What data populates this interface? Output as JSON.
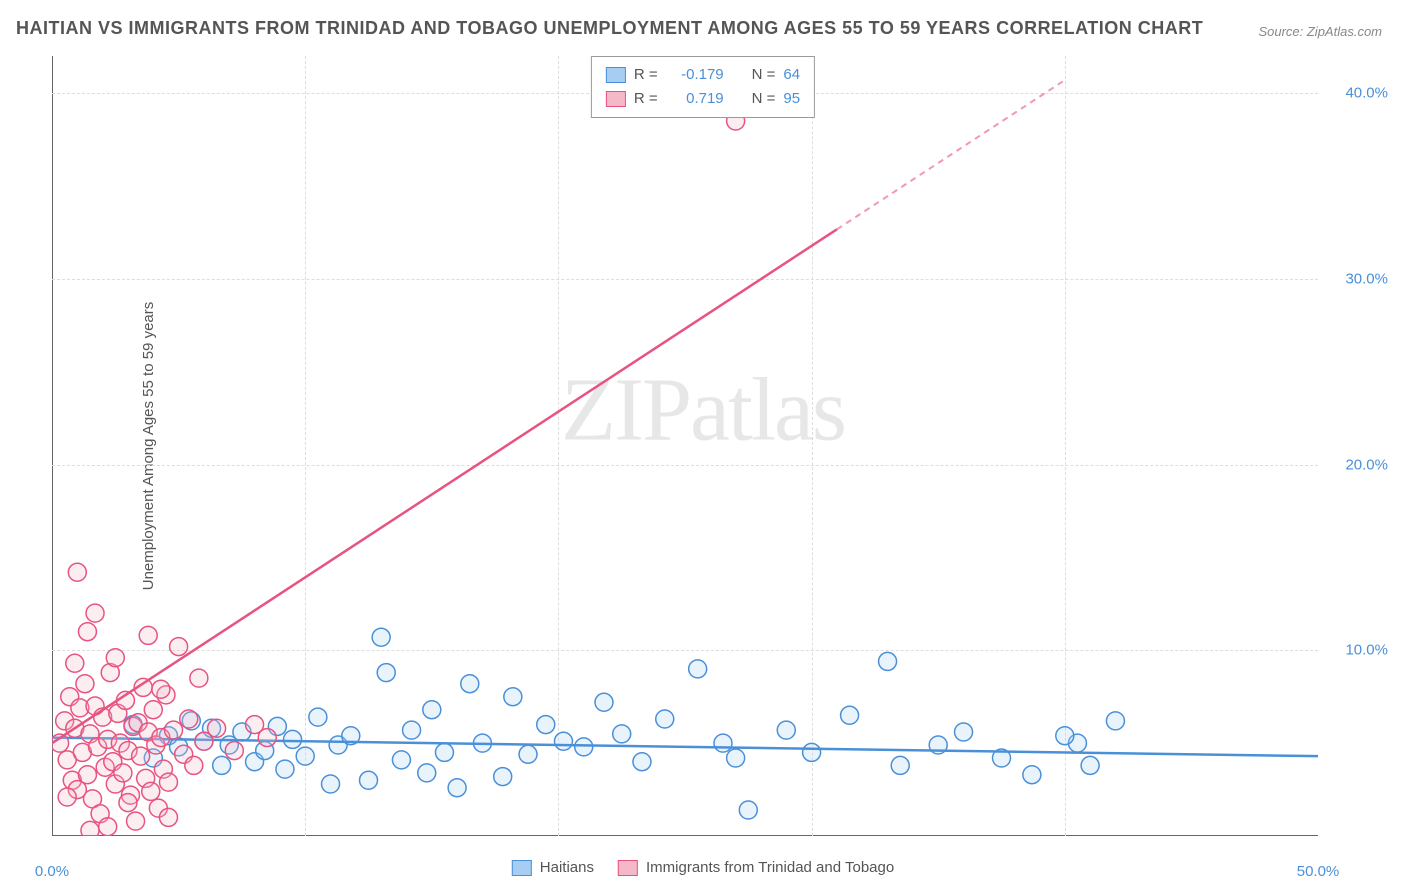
{
  "title": "HAITIAN VS IMMIGRANTS FROM TRINIDAD AND TOBAGO UNEMPLOYMENT AMONG AGES 55 TO 59 YEARS CORRELATION CHART",
  "source": "Source: ZipAtlas.com",
  "ylabel": "Unemployment Among Ages 55 to 59 years",
  "watermark": "ZIPatlas",
  "chart": {
    "type": "scatter",
    "background_color": "#ffffff",
    "grid_color": "#dddddd",
    "axis_color": "#666666",
    "tick_label_color": "#4a90d9",
    "xlim": [
      0,
      50
    ],
    "ylim": [
      0,
      42
    ],
    "xticks": [
      0,
      50
    ],
    "xtick_labels": [
      "0.0%",
      "50.0%"
    ],
    "yticks": [
      10,
      20,
      30,
      40
    ],
    "ytick_labels": [
      "10.0%",
      "20.0%",
      "30.0%",
      "40.0%"
    ],
    "gridlines_y": [
      10,
      20,
      30,
      40
    ],
    "gridlines_x": [
      10,
      20,
      30,
      40
    ],
    "marker_radius": 9,
    "series": [
      {
        "name": "Haitians",
        "color_fill": "#a7cef2",
        "color_stroke": "#4a90d9",
        "R": "-0.179",
        "N": "64",
        "trend": {
          "x1": 0,
          "y1": 5.3,
          "x2": 50,
          "y2": 4.3,
          "dashed_from": null
        },
        "points": [
          [
            3.2,
            6.0
          ],
          [
            4.0,
            4.2
          ],
          [
            4.6,
            5.4
          ],
          [
            5.0,
            4.8
          ],
          [
            5.5,
            6.2
          ],
          [
            6.0,
            5.1
          ],
          [
            6.3,
            5.8
          ],
          [
            6.7,
            3.8
          ],
          [
            7.0,
            4.9
          ],
          [
            7.5,
            5.6
          ],
          [
            8.0,
            4.0
          ],
          [
            8.4,
            4.6
          ],
          [
            8.9,
            5.9
          ],
          [
            9.2,
            3.6
          ],
          [
            9.5,
            5.2
          ],
          [
            10.0,
            4.3
          ],
          [
            10.5,
            6.4
          ],
          [
            11.0,
            2.8
          ],
          [
            11.3,
            4.9
          ],
          [
            11.8,
            5.4
          ],
          [
            12.5,
            3.0
          ],
          [
            13.0,
            10.7
          ],
          [
            13.2,
            8.8
          ],
          [
            13.8,
            4.1
          ],
          [
            14.2,
            5.7
          ],
          [
            14.8,
            3.4
          ],
          [
            15.0,
            6.8
          ],
          [
            15.5,
            4.5
          ],
          [
            16.0,
            2.6
          ],
          [
            16.5,
            8.2
          ],
          [
            17.0,
            5.0
          ],
          [
            17.8,
            3.2
          ],
          [
            18.2,
            7.5
          ],
          [
            18.8,
            4.4
          ],
          [
            19.5,
            6.0
          ],
          [
            20.2,
            5.1
          ],
          [
            21.0,
            4.8
          ],
          [
            21.8,
            7.2
          ],
          [
            22.5,
            5.5
          ],
          [
            23.3,
            4.0
          ],
          [
            24.2,
            6.3
          ],
          [
            25.5,
            9.0
          ],
          [
            26.5,
            5.0
          ],
          [
            27.0,
            4.2
          ],
          [
            27.5,
            1.4
          ],
          [
            29.0,
            5.7
          ],
          [
            30.0,
            4.5
          ],
          [
            31.5,
            6.5
          ],
          [
            33.0,
            9.4
          ],
          [
            33.5,
            3.8
          ],
          [
            35.0,
            4.9
          ],
          [
            36.0,
            5.6
          ],
          [
            37.5,
            4.2
          ],
          [
            38.7,
            3.3
          ],
          [
            40.5,
            5.0
          ],
          [
            40.0,
            5.4
          ],
          [
            41.0,
            3.8
          ],
          [
            42.0,
            6.2
          ]
        ]
      },
      {
        "name": "Immigrants from Trinidad and Tobago",
        "color_fill": "#f5b8c9",
        "color_stroke": "#e75480",
        "R": "0.719",
        "N": "95",
        "trend": {
          "x1": 0,
          "y1": 5.0,
          "x2": 40,
          "y2": 40.7,
          "dashed_from": 31
        },
        "points": [
          [
            0.3,
            5.0
          ],
          [
            0.5,
            6.2
          ],
          [
            0.6,
            4.1
          ],
          [
            0.7,
            7.5
          ],
          [
            0.8,
            3.0
          ],
          [
            0.9,
            5.8
          ],
          [
            1.0,
            2.5
          ],
          [
            1.1,
            6.9
          ],
          [
            1.2,
            4.5
          ],
          [
            1.3,
            8.2
          ],
          [
            1.4,
            3.3
          ],
          [
            1.5,
            5.5
          ],
          [
            1.6,
            2.0
          ],
          [
            1.7,
            7.0
          ],
          [
            1.8,
            4.8
          ],
          [
            1.9,
            1.2
          ],
          [
            2.0,
            6.4
          ],
          [
            2.1,
            3.7
          ],
          [
            2.2,
            5.2
          ],
          [
            2.3,
            8.8
          ],
          [
            2.4,
            4.0
          ],
          [
            2.5,
            2.8
          ],
          [
            2.6,
            6.6
          ],
          [
            2.7,
            5.0
          ],
          [
            2.8,
            3.4
          ],
          [
            2.9,
            7.3
          ],
          [
            3.0,
            4.6
          ],
          [
            3.1,
            2.2
          ],
          [
            3.2,
            5.9
          ],
          [
            3.3,
            0.8
          ],
          [
            3.4,
            6.1
          ],
          [
            3.5,
            4.3
          ],
          [
            3.6,
            8.0
          ],
          [
            3.7,
            3.1
          ],
          [
            3.8,
            5.6
          ],
          [
            3.9,
            2.4
          ],
          [
            4.0,
            6.8
          ],
          [
            4.1,
            4.9
          ],
          [
            4.2,
            1.5
          ],
          [
            4.3,
            5.3
          ],
          [
            4.4,
            3.6
          ],
          [
            4.5,
            7.6
          ],
          [
            4.6,
            2.9
          ],
          [
            4.8,
            5.7
          ],
          [
            5.0,
            10.2
          ],
          [
            5.2,
            4.4
          ],
          [
            5.4,
            6.3
          ],
          [
            5.6,
            3.8
          ],
          [
            5.8,
            8.5
          ],
          [
            6.0,
            5.1
          ],
          [
            1.4,
            11.0
          ],
          [
            1.0,
            14.2
          ],
          [
            2.5,
            9.6
          ],
          [
            3.8,
            10.8
          ],
          [
            4.3,
            7.9
          ],
          [
            0.9,
            9.3
          ],
          [
            1.7,
            12.0
          ],
          [
            6.5,
            5.8
          ],
          [
            7.2,
            4.6
          ],
          [
            8.0,
            6.0
          ],
          [
            8.5,
            5.3
          ],
          [
            4.6,
            1.0
          ],
          [
            27.0,
            38.5
          ],
          [
            2.2,
            0.5
          ],
          [
            3.0,
            1.8
          ],
          [
            1.5,
            0.3
          ],
          [
            0.6,
            2.1
          ]
        ]
      }
    ]
  },
  "legend_top": [
    {
      "swatch_fill": "#a7cef2",
      "swatch_stroke": "#4a90d9",
      "r_label": "R =",
      "r_val": "-0.179",
      "n_label": "N =",
      "n_val": "64"
    },
    {
      "swatch_fill": "#f5b8c9",
      "swatch_stroke": "#e75480",
      "r_label": "R =",
      "r_val": "0.719",
      "n_label": "N =",
      "n_val": "95"
    }
  ],
  "legend_bottom": [
    {
      "swatch_fill": "#a7cef2",
      "swatch_stroke": "#4a90d9",
      "label": "Haitians"
    },
    {
      "swatch_fill": "#f5b8c9",
      "swatch_stroke": "#e75480",
      "label": "Immigrants from Trinidad and Tobago"
    }
  ]
}
